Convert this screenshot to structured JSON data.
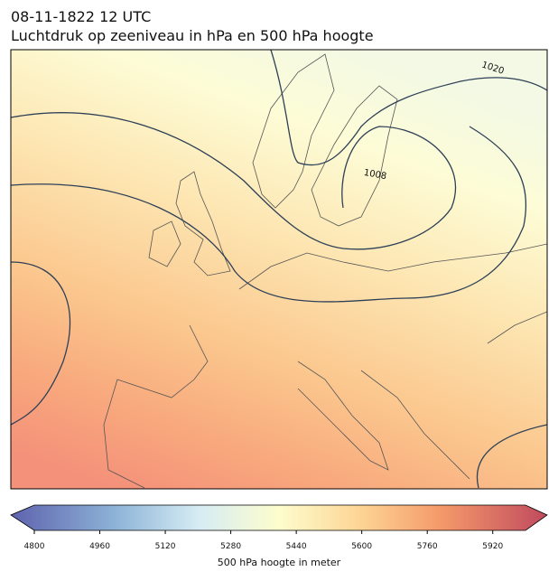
{
  "header": {
    "title": "08-11-1822 12 UTC",
    "subtitle": "Luchtdruk op zeeniveau in hPa en 500 hPa hoogte"
  },
  "map": {
    "contour_labels": [
      "1020",
      "1008"
    ]
  },
  "colorbar": {
    "label": "500 hPa hoogte in meter",
    "lim": [
      4800,
      6000
    ],
    "ticks": [
      4800,
      4960,
      5120,
      5280,
      5440,
      5600,
      5760,
      5920
    ]
  }
}
